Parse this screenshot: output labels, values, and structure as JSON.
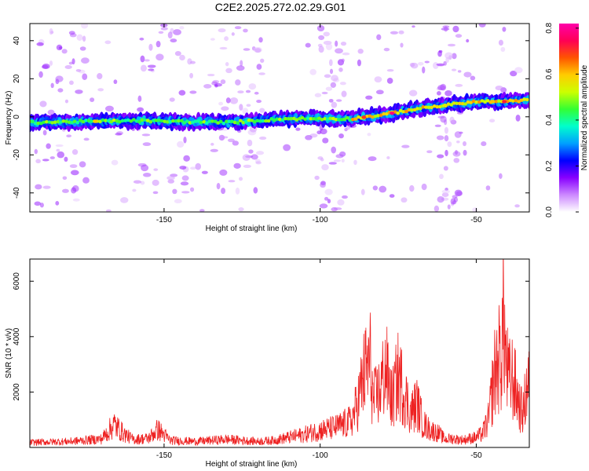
{
  "figure_title": "C2E2.2025.272.02.29.G01",
  "chart_data": [
    {
      "type": "heatmap",
      "xlabel": "Height of straight line (km)",
      "ylabel": "Frequency (Hz)",
      "xlim": [
        -193,
        -33
      ],
      "ylim": [
        -50,
        49
      ],
      "x_ticks": [
        -150,
        -100,
        -50
      ],
      "y_ticks": [
        -40,
        -20,
        0,
        20,
        40
      ],
      "colorbar": {
        "label": "Normalized spectral amplitude",
        "range": [
          0,
          0.82
        ],
        "ticks": [
          0,
          0.2,
          0.4,
          0.6,
          0.8
        ],
        "colors": [
          "#ffffff",
          "#cc88ff",
          "#8800ff",
          "#0000ff",
          "#00a0ff",
          "#00ffcc",
          "#33ff33",
          "#ccff00",
          "#ffcc00",
          "#ff5500",
          "#ff0055",
          "#ff00aa"
        ]
      },
      "band_center": [
        [
          -193,
          -3
        ],
        [
          -160,
          -2
        ],
        [
          -130,
          -3
        ],
        [
          -110,
          -1
        ],
        [
          -100,
          -1
        ],
        [
          -90,
          -1
        ],
        [
          -80,
          1
        ],
        [
          -70,
          4
        ],
        [
          -60,
          6
        ],
        [
          -50,
          8
        ],
        [
          -40,
          8
        ],
        [
          -33,
          9
        ]
      ],
      "band_halfwidth_hz": 3.5
    },
    {
      "type": "line",
      "xlabel": "Height of straight line (km)",
      "ylabel": "SNR (10 * v/v)",
      "xlim": [
        -193,
        -33
      ],
      "ylim": [
        0,
        6800
      ],
      "x_ticks": [
        -150,
        -100,
        -50
      ],
      "y_ticks": [
        2000,
        4000,
        6000
      ],
      "series": [
        {
          "color": "#ee2222",
          "x": [
            -193,
            -180,
            -170,
            -166,
            -163,
            -160,
            -155,
            -152,
            -148,
            -140,
            -130,
            -120,
            -115,
            -110,
            -105,
            -100,
            -95,
            -90,
            -88,
            -86,
            -84,
            -83,
            -81,
            -79,
            -77,
            -75,
            -73,
            -71,
            -69,
            -67,
            -65,
            -62,
            -60,
            -58,
            -56,
            -54,
            -52,
            -50,
            -48,
            -46,
            -45,
            -44,
            -43,
            -42,
            -41.2,
            -40.5,
            -39.5,
            -38.5,
            -37.5,
            -36,
            -35,
            -33.5
          ],
          "y": [
            250,
            300,
            420,
            1150,
            700,
            400,
            450,
            900,
            350,
            300,
            400,
            300,
            350,
            500,
            650,
            850,
            1000,
            1300,
            2200,
            3600,
            4300,
            2300,
            2800,
            4000,
            2300,
            3600,
            2700,
            1700,
            2200,
            1200,
            900,
            700,
            400,
            450,
            400,
            380,
            450,
            500,
            700,
            1400,
            2700,
            3800,
            4300,
            4600,
            6750,
            4200,
            3300,
            3500,
            3000,
            2000,
            1700,
            3300
          ]
        }
      ]
    }
  ]
}
